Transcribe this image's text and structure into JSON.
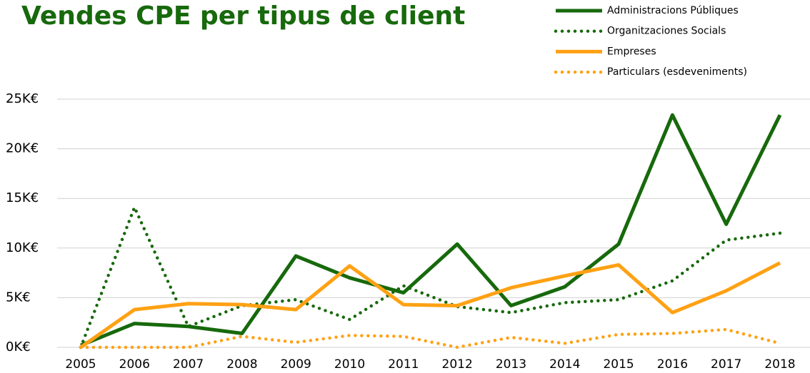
{
  "chart_data": {
    "type": "line",
    "title": "Vendes CPE per tipus de client",
    "categories": [
      "2005",
      "2006",
      "2007",
      "2008",
      "2009",
      "2010",
      "2011",
      "2012",
      "2013",
      "2014",
      "2015",
      "2016",
      "2017",
      "2018"
    ],
    "series": [
      {
        "name": "Administracions Públiques",
        "color": "#17690c",
        "dash": "solid",
        "values": [
          200,
          2400,
          2100,
          1400,
          9200,
          7000,
          5500,
          10400,
          4200,
          6100,
          10400,
          23400,
          12400,
          23400
        ]
      },
      {
        "name": "Organitzaciones Socials",
        "color": "#17690c",
        "dash": "dotted",
        "values": [
          0,
          14100,
          2100,
          4200,
          4800,
          2800,
          6200,
          4100,
          3500,
          4500,
          4800,
          6700,
          10800,
          11500
        ]
      },
      {
        "name": "Empreses",
        "color": "#ffa114",
        "dash": "solid",
        "values": [
          0,
          3800,
          4400,
          4300,
          3800,
          8200,
          4300,
          4200,
          6000,
          7200,
          8300,
          3500,
          5700,
          8500
        ]
      },
      {
        "name": "Particulars (esdeveniments)",
        "color": "#ffa114",
        "dash": "dotted",
        "values": [
          0,
          0,
          0,
          1100,
          500,
          1200,
          1100,
          0,
          1000,
          400,
          1300,
          1400,
          1800,
          400
        ]
      }
    ],
    "ylim": [
      0,
      25000
    ],
    "yticks": [
      {
        "value": 0,
        "label": "0K€"
      },
      {
        "value": 5000,
        "label": "5K€"
      },
      {
        "value": 10000,
        "label": "10K€"
      },
      {
        "value": 15000,
        "label": "15K€"
      },
      {
        "value": 20000,
        "label": "20K€"
      },
      {
        "value": 25000,
        "label": "25K€"
      }
    ],
    "grid": true,
    "legend": "top-right"
  }
}
